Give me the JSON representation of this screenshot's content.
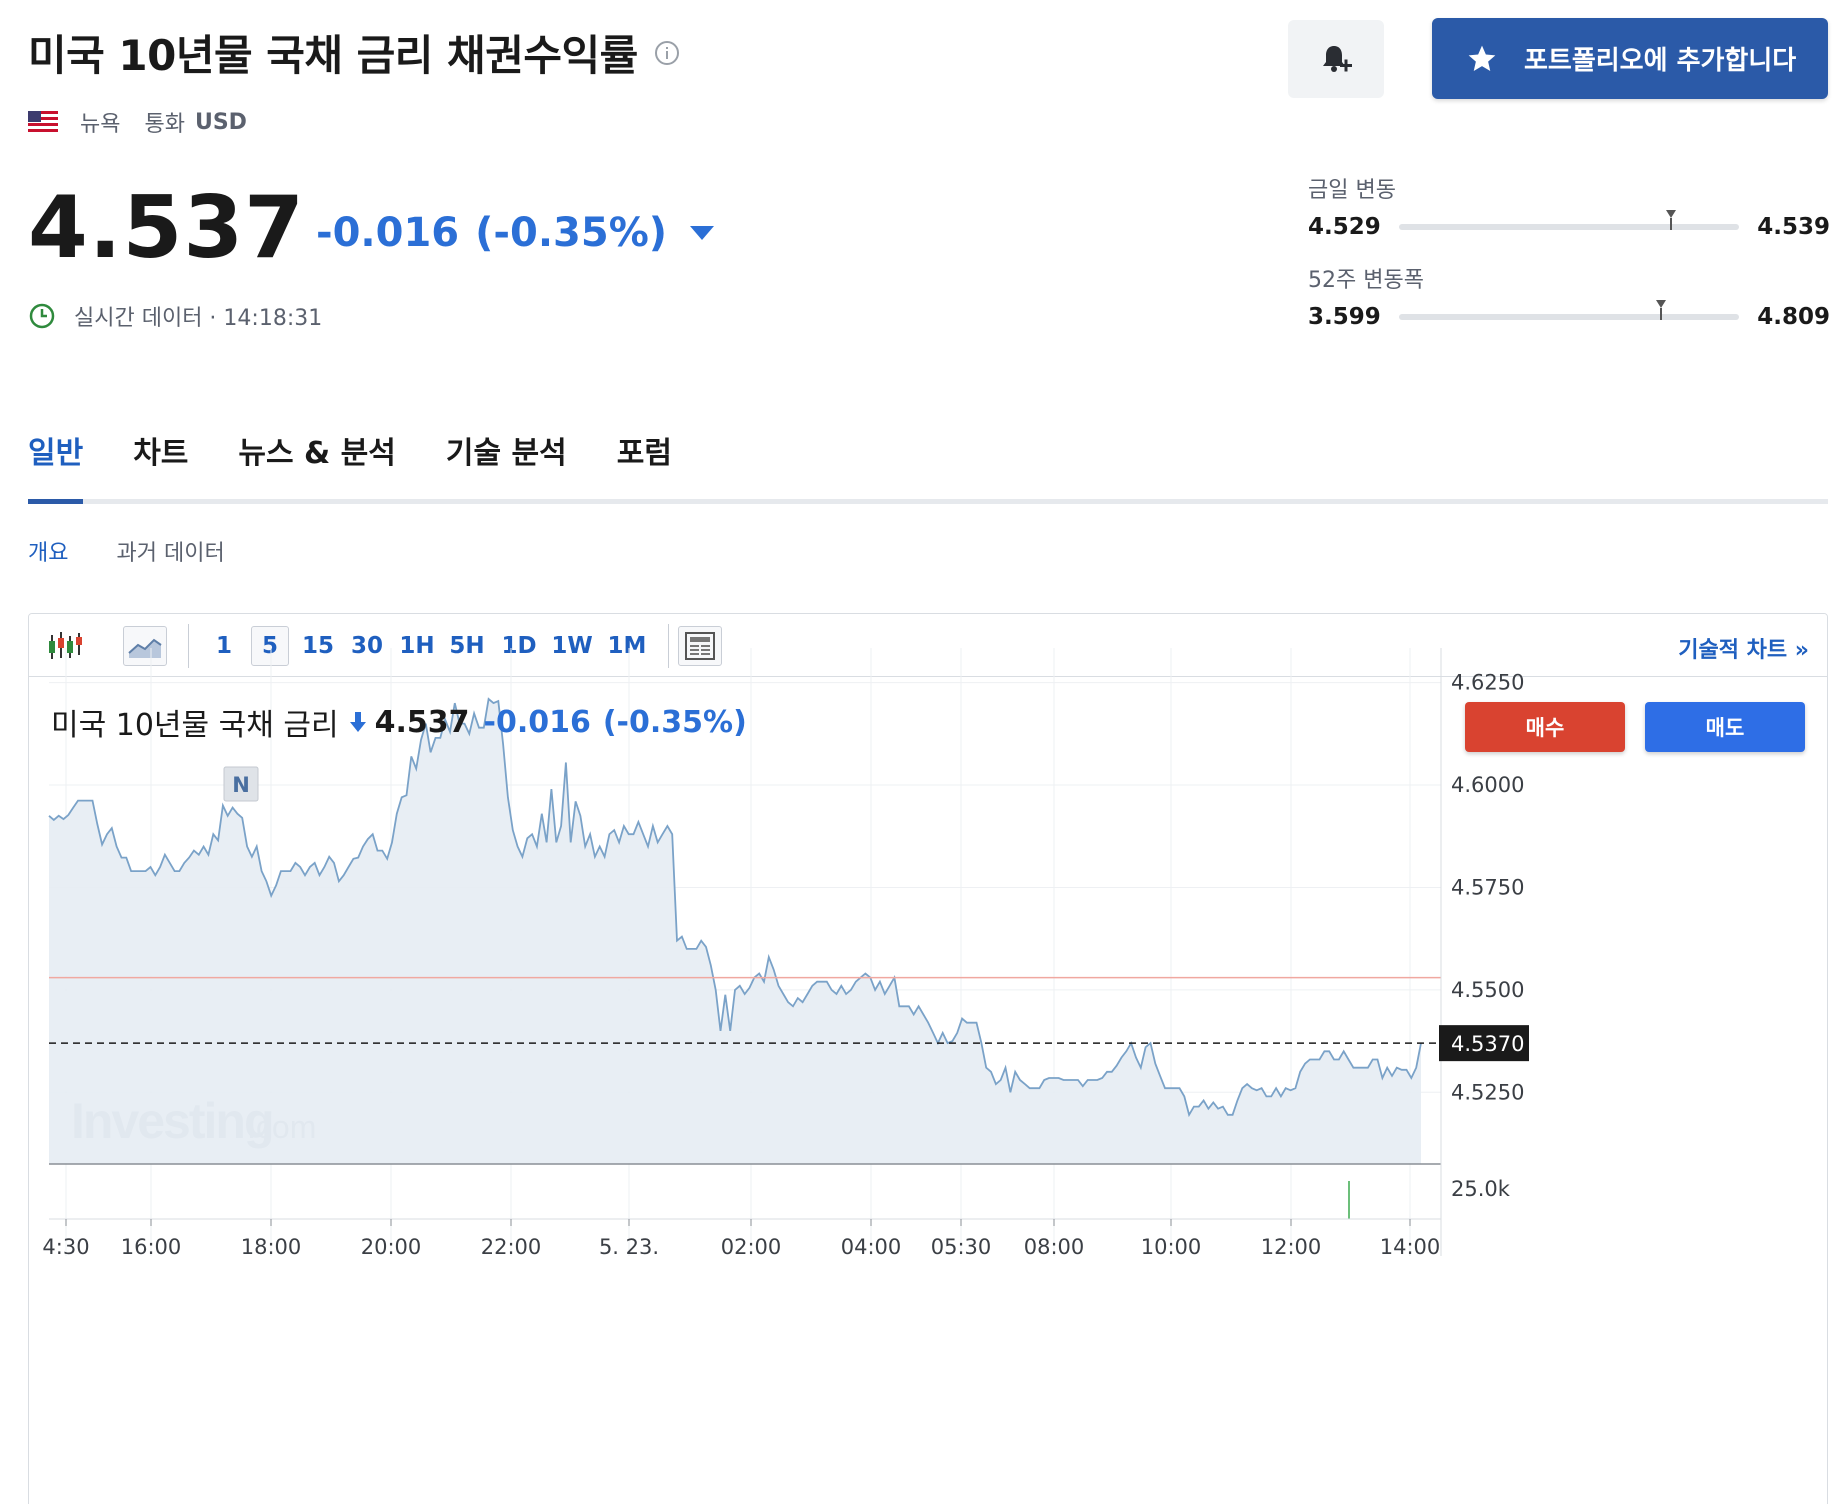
{
  "header": {
    "title": "미국 10년물 국채 금리 채권수익률",
    "exchange": "뉴욕",
    "currency_label": "통화",
    "currency": "USD",
    "portfolio_button": "포트폴리오에 추가합니다"
  },
  "quote": {
    "price": "4.537",
    "change": "-0.016",
    "change_pct": "(-0.35%)",
    "realtime_label": "실시간 데이터 · 14:18:31",
    "change_color": "#2b6fd6"
  },
  "ranges": {
    "day": {
      "label": "금일 변동",
      "low": "4.529",
      "high": "4.539",
      "position": 0.8
    },
    "week52": {
      "label": "52주 변동폭",
      "low": "3.599",
      "high": "4.809",
      "position": 0.77
    }
  },
  "tabs": [
    {
      "label": "일반",
      "active": true
    },
    {
      "label": "차트",
      "active": false
    },
    {
      "label": "뉴스 & 분석",
      "active": false
    },
    {
      "label": "기술 분석",
      "active": false
    },
    {
      "label": "포럼",
      "active": false
    }
  ],
  "subtabs": [
    {
      "label": "개요",
      "active": true
    },
    {
      "label": "과거 데이터",
      "active": false
    }
  ],
  "chart_widget": {
    "intervals": [
      "1",
      "5",
      "15",
      "30",
      "1H",
      "5H",
      "1D",
      "1W",
      "1M"
    ],
    "selected_interval": "5",
    "tech_chart_link": "기술적 차트 »",
    "header_name": "미국 10년물 국채 금리",
    "header_price": "4.537",
    "header_change": "-0.016",
    "header_pct": "(-0.35%)",
    "buy_label": "매수",
    "sell_label": "매도",
    "buy_color": "#d94330",
    "sell_color": "#2e6ee6",
    "news_marker": "N",
    "watermark_main": "Investing",
    "watermark_suffix": ".com"
  },
  "chart_data": {
    "type": "area",
    "y_ticks": [
      "4.6250",
      "4.6000",
      "4.5750",
      "4.5500",
      "4.5250"
    ],
    "ylim": [
      4.5075,
      4.6315
    ],
    "volume_tick": "25.0k",
    "x_ticks": [
      "4:30",
      "16:00",
      "18:00",
      "20:00",
      "22:00",
      "5. 23.",
      "02:00",
      "04:00",
      "05:30",
      "08:00",
      "10:00",
      "12:00",
      "14:00"
    ],
    "current_value": 4.537,
    "current_label": "4.5370",
    "prev_close": 4.553,
    "series": [
      {
        "values": [
          4.5925,
          4.5915,
          4.5925,
          4.5917,
          4.5927,
          4.5945,
          4.5962,
          4.5962,
          4.5962,
          4.5962,
          4.5905,
          4.5855,
          4.588,
          4.5895,
          4.585,
          4.5823,
          4.5823,
          4.579,
          4.579,
          4.579,
          4.579,
          4.58,
          4.578,
          4.58,
          4.583,
          4.581,
          4.579,
          4.579,
          4.581,
          4.5823,
          4.584,
          4.583,
          4.585,
          4.583,
          4.588,
          4.5865,
          4.595,
          4.5925,
          4.5945,
          4.593,
          4.592,
          4.585,
          4.5825,
          4.585,
          4.579,
          4.5765,
          4.573,
          4.5755,
          4.579,
          4.579,
          4.579,
          4.581,
          4.58,
          4.578,
          4.58,
          4.581,
          4.578,
          4.58,
          4.5825,
          4.581,
          4.5765,
          4.578,
          4.58,
          4.582,
          4.5823,
          4.585,
          4.5868,
          4.588,
          4.584,
          4.584,
          4.582,
          4.586,
          4.593,
          4.597,
          4.5975,
          4.607,
          4.604,
          4.611,
          4.615,
          4.608,
          4.6115,
          4.6115,
          4.616,
          4.613,
          4.62,
          4.615,
          4.615,
          4.6125,
          4.6175,
          4.614,
          4.614,
          4.621,
          4.62,
          4.6205,
          4.61,
          4.597,
          4.589,
          4.585,
          4.5825,
          4.587,
          4.588,
          4.585,
          4.593,
          4.586,
          4.599,
          4.586,
          4.59,
          4.6055,
          4.586,
          4.596,
          4.5925,
          4.585,
          4.588,
          4.5825,
          4.585,
          4.5825,
          4.588,
          4.589,
          4.586,
          4.59,
          4.588,
          4.588,
          4.591,
          4.588,
          4.585,
          4.59,
          4.586,
          4.588,
          4.59,
          4.588,
          4.562,
          4.563,
          4.56,
          4.56,
          4.56,
          4.562,
          4.5605,
          4.556,
          4.55,
          4.54,
          4.5488,
          4.54,
          4.55,
          4.551,
          4.549,
          4.5505,
          4.553,
          4.554,
          4.552,
          4.558,
          4.555,
          4.551,
          4.549,
          4.547,
          4.546,
          4.548,
          4.547,
          4.549,
          4.551,
          4.552,
          4.552,
          4.552,
          4.55,
          4.549,
          4.551,
          4.549,
          4.55,
          4.552,
          4.553,
          4.554,
          4.553,
          4.55,
          4.552,
          4.549,
          4.551,
          4.553,
          4.546,
          4.546,
          4.546,
          4.544,
          4.546,
          4.544,
          4.542,
          4.5395,
          4.537,
          4.5395,
          4.537,
          4.5375,
          4.5395,
          4.543,
          4.542,
          4.542,
          4.542,
          4.537,
          4.531,
          4.53,
          4.527,
          4.528,
          4.531,
          4.525,
          4.53,
          4.528,
          4.527,
          4.526,
          4.526,
          4.526,
          4.528,
          4.5285,
          4.5285,
          4.5285,
          4.528,
          4.528,
          4.528,
          4.528,
          4.5265,
          4.528,
          4.528,
          4.528,
          4.5285,
          4.53,
          4.53,
          4.5315,
          4.5335,
          4.535,
          4.537,
          4.5335,
          4.531,
          4.536,
          4.537,
          4.532,
          4.529,
          4.526,
          4.526,
          4.526,
          4.526,
          4.524,
          4.5195,
          4.5215,
          4.5215,
          4.523,
          4.521,
          4.5225,
          4.521,
          4.5215,
          4.5195,
          4.5195,
          4.523,
          4.526,
          4.527,
          4.526,
          4.5255,
          4.526,
          4.524,
          4.524,
          4.526,
          4.524,
          4.526,
          4.5255,
          4.526,
          4.53,
          4.532,
          4.533,
          4.533,
          4.533,
          4.535,
          4.535,
          4.533,
          4.533,
          4.535,
          4.533,
          4.531,
          4.531,
          4.531,
          4.531,
          4.533,
          4.533,
          4.5285,
          4.531,
          4.529,
          4.531,
          4.5305,
          4.5305,
          4.5285,
          4.531,
          4.537
        ]
      }
    ]
  }
}
